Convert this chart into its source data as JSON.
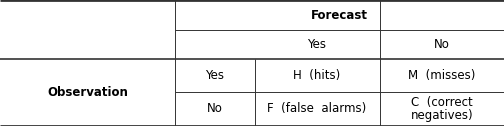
{
  "figsize": [
    5.04,
    1.26
  ],
  "dpi": 100,
  "header_forecast": "Forecast",
  "header_yes": "Yes",
  "header_no": "No",
  "obs_label": "Observation",
  "obs_yes": "Yes",
  "obs_no": "No",
  "cell_H": "H  (hits)",
  "cell_M": "M  (misses)",
  "cell_F": "F  (false  alarms)",
  "cell_C1": "C  (correct",
  "cell_C2": "negatives)",
  "line_color": "#333333",
  "bg_color": "#ffffff",
  "text_color": "#000000",
  "font_size": 8.5,
  "c0": 0.0,
  "c1": 0.347,
  "c2": 0.505,
  "c3": 0.753,
  "c4": 1.0,
  "r0": 1.0,
  "r1": 0.76,
  "r2": 0.535,
  "r3": 0.27,
  "r4": 0.0,
  "lw_thick": 2.0,
  "lw_mid": 1.2,
  "lw_thin": 0.7
}
